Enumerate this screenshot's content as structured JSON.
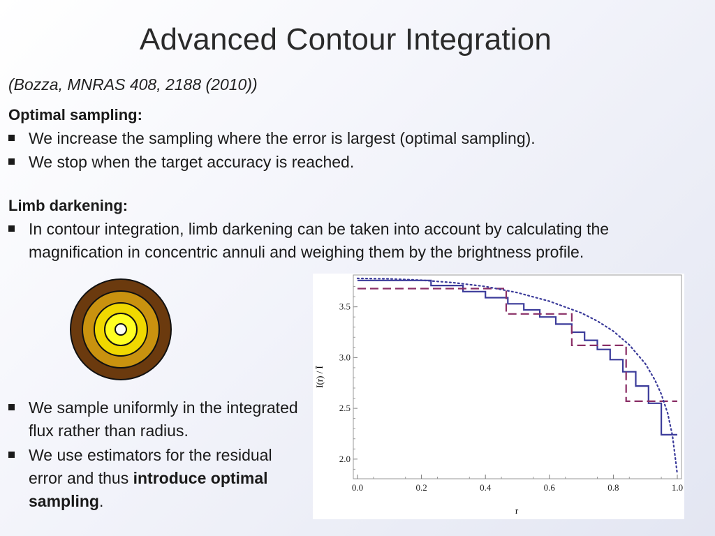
{
  "slide": {
    "title": "Advanced Contour Integration",
    "citation": "(Bozza, MNRAS 408, 2188 (2010))",
    "optimal": {
      "heading": "Optimal sampling:",
      "bullets": [
        "We increase the sampling where the error is largest (optimal sampling).",
        "We stop when the target accuracy is reached."
      ]
    },
    "limb": {
      "heading": "Limb darkening:",
      "bullet": "In contour integration, limb darkening can be taken into account by calculating the magnification in concentric annuli and weighing them by the brightness profile."
    },
    "lower": {
      "bullet1": "We sample uniformly in the integrated flux rather than radius.",
      "bullet2_pre": "We use estimators for the residual error and thus ",
      "bullet2_bold": "introduce optimal sampling",
      "bullet2_post": "."
    }
  },
  "disk_colors": [
    "#6b3a0e",
    "#c9920f",
    "#f0d800",
    "#ffff22",
    "#fffff0"
  ],
  "chart_data": {
    "type": "line",
    "xlabel": "r",
    "ylabel": "I(r) / Ī",
    "xlim": [
      0,
      1
    ],
    "ylim": [
      1.82,
      3.8
    ],
    "xticks": [
      "0.0",
      "0.2",
      "0.4",
      "0.6",
      "0.8",
      "1.0"
    ],
    "yticks": [
      "2.0",
      "2.5",
      "3.0",
      "3.5"
    ],
    "series": [
      {
        "style": "solid",
        "color": "#3b3b9a",
        "steps": [
          [
            0.0,
            0.23,
            3.76
          ],
          [
            0.23,
            0.33,
            3.71
          ],
          [
            0.33,
            0.4,
            3.65
          ],
          [
            0.4,
            0.47,
            3.59
          ],
          [
            0.47,
            0.52,
            3.53
          ],
          [
            0.52,
            0.57,
            3.47
          ],
          [
            0.57,
            0.62,
            3.4
          ],
          [
            0.62,
            0.67,
            3.33
          ],
          [
            0.67,
            0.71,
            3.25
          ],
          [
            0.71,
            0.75,
            3.17
          ],
          [
            0.75,
            0.79,
            3.08
          ],
          [
            0.79,
            0.83,
            2.98
          ],
          [
            0.83,
            0.87,
            2.86
          ],
          [
            0.87,
            0.91,
            2.72
          ],
          [
            0.91,
            0.95,
            2.55
          ],
          [
            0.95,
            1.0,
            2.24
          ]
        ]
      },
      {
        "style": "dashed",
        "color": "#8a2f66",
        "steps": [
          [
            0.0,
            0.465,
            3.68
          ],
          [
            0.465,
            0.67,
            3.43
          ],
          [
            0.67,
            0.84,
            3.12
          ],
          [
            0.84,
            1.0,
            2.57
          ]
        ]
      },
      {
        "style": "dotted",
        "color": "#3b3b9a",
        "points": [
          [
            0.0,
            3.78
          ],
          [
            0.1,
            3.776
          ],
          [
            0.2,
            3.762
          ],
          [
            0.3,
            3.738
          ],
          [
            0.4,
            3.7
          ],
          [
            0.5,
            3.64
          ],
          [
            0.6,
            3.555
          ],
          [
            0.7,
            3.44
          ],
          [
            0.75,
            3.36
          ],
          [
            0.8,
            3.26
          ],
          [
            0.85,
            3.125
          ],
          [
            0.9,
            2.94
          ],
          [
            0.93,
            2.78
          ],
          [
            0.95,
            2.64
          ],
          [
            0.97,
            2.45
          ],
          [
            0.985,
            2.23
          ],
          [
            0.995,
            1.98
          ],
          [
            1.0,
            1.85
          ]
        ]
      }
    ]
  }
}
